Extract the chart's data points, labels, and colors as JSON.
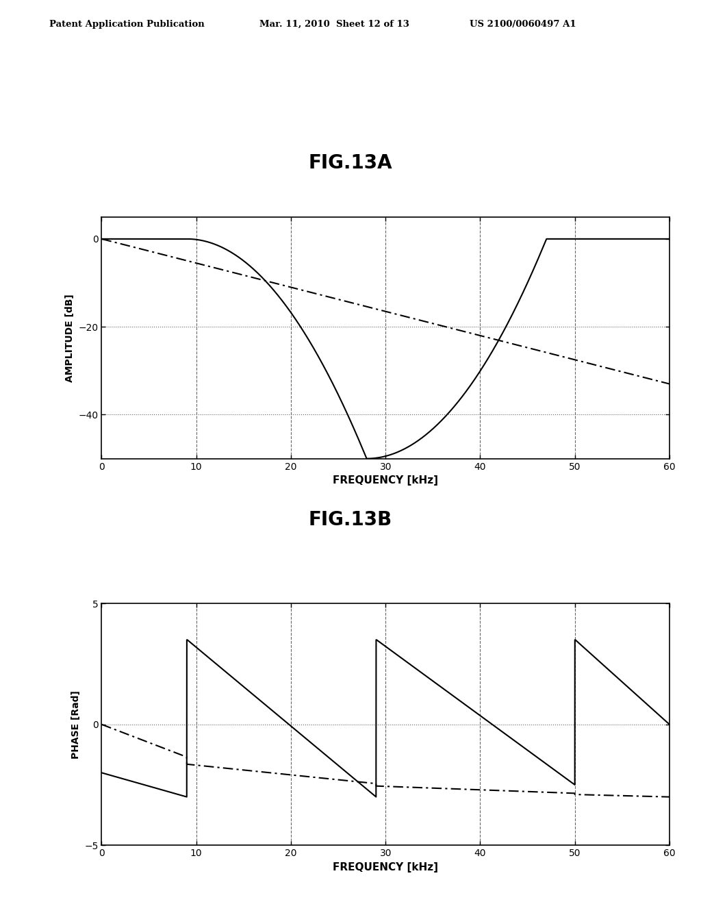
{
  "header_left": "Patent Application Publication",
  "header_mid": "Mar. 11, 2010  Sheet 12 of 13",
  "header_right": "US 2100/0060497 A1",
  "fig_title_a": "FIG.13A",
  "fig_title_b": "FIG.13B",
  "freq_min": 0,
  "freq_max": 60,
  "amp_min": -50,
  "amp_max": 5,
  "amp_yticks": [
    0,
    -20,
    -40
  ],
  "amp_ylabel": "AMPLITUDE [dB]",
  "amp_xlabel": "FREQUENCY [kHz]",
  "phase_min": -5,
  "phase_max": 5,
  "phase_yticks": [
    5,
    0,
    -5
  ],
  "phase_ylabel": "PHASE [Rad]",
  "phase_xlabel": "FREQUENCY [kHz]",
  "xticks": [
    0,
    10,
    20,
    30,
    40,
    50,
    60
  ],
  "solid_color": "#000000",
  "dashdot_color": "#000000",
  "bg_color": "#ffffff",
  "grid_color": "#666666",
  "dotted_color": "#666666"
}
